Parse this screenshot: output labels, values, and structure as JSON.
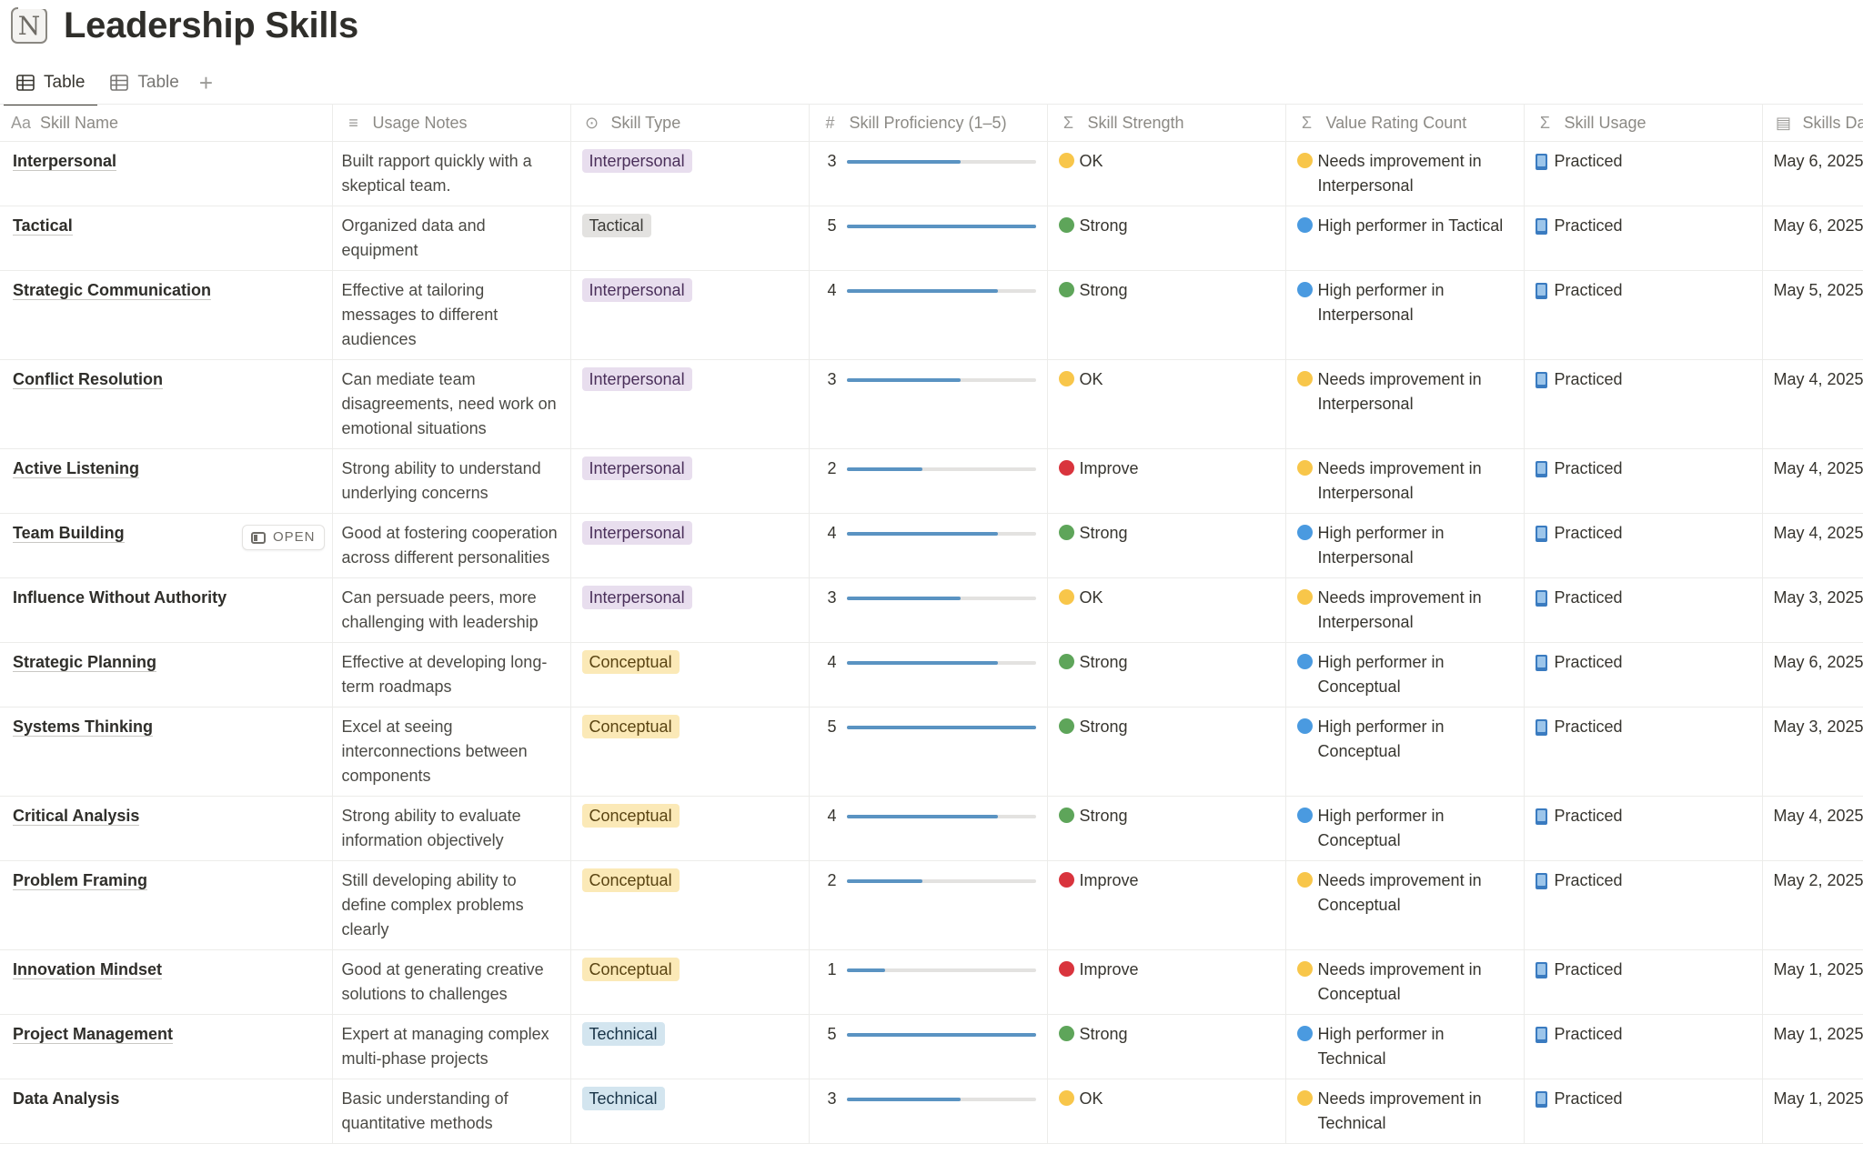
{
  "page": {
    "title": "Leadership Skills",
    "logo_letter": "N"
  },
  "tabs": [
    {
      "label": "Table",
      "icon": "table-icon",
      "active": true
    },
    {
      "label": "Table",
      "icon": "table-icon",
      "active": false
    }
  ],
  "add_tab_label": "+",
  "columns": [
    {
      "key": "name",
      "label": "Skill Name",
      "icon": "Aa"
    },
    {
      "key": "notes",
      "label": "Usage Notes",
      "icon": "≡"
    },
    {
      "key": "type",
      "label": "Skill Type",
      "icon": "⊙"
    },
    {
      "key": "proficiency",
      "label": "Skill Proficiency (1–5)",
      "icon": "#"
    },
    {
      "key": "strength",
      "label": "Skill Strength",
      "icon": "Σ"
    },
    {
      "key": "value",
      "label": "Value Rating Count",
      "icon": "Σ"
    },
    {
      "key": "usage",
      "label": "Skill Usage",
      "icon": "Σ"
    },
    {
      "key": "date",
      "label": "Skills Dat",
      "icon": "▤"
    }
  ],
  "open_button_label": "OPEN",
  "colors": {
    "ok": "#f8c64a",
    "strong": "#5ea55a",
    "improve": "#d9343d",
    "high": "#4a9ae0",
    "needs": "#f8c64a",
    "bar": "#5a93c2"
  },
  "rows": [
    {
      "name": "Interpersonal",
      "underline": true,
      "notes": "Built rapport quickly with a skeptical team.",
      "type": "Interpersonal",
      "type_class": "interpersonal",
      "proficiency": 3,
      "strength": "OK",
      "strength_color": "#f8c64a",
      "value": "Needs improvement in Interpersonal",
      "value_color": "#f8c64a",
      "usage": "Practiced",
      "date": "May 6, 2025"
    },
    {
      "name": "Tactical",
      "underline": true,
      "notes": "Organized data and equipment",
      "type": "Tactical",
      "type_class": "tactical",
      "proficiency": 5,
      "strength": "Strong",
      "strength_color": "#5ea55a",
      "value": "High performer in Tactical",
      "value_color": "#4a9ae0",
      "usage": "Practiced",
      "date": "May 6, 2025"
    },
    {
      "name": "Strategic Communication",
      "underline": true,
      "notes": "Effective at tailoring messages to different audiences",
      "type": "Interpersonal",
      "type_class": "interpersonal",
      "proficiency": 4,
      "strength": "Strong",
      "strength_color": "#5ea55a",
      "value": "High performer in Interpersonal",
      "value_color": "#4a9ae0",
      "usage": "Practiced",
      "date": "May 5, 2025"
    },
    {
      "name": "Conflict Resolution",
      "underline": true,
      "notes": "Can mediate team disagreements, need work on emotional situations",
      "type": "Interpersonal",
      "type_class": "interpersonal",
      "proficiency": 3,
      "strength": "OK",
      "strength_color": "#f8c64a",
      "value": "Needs improvement in Interpersonal",
      "value_color": "#f8c64a",
      "usage": "Practiced",
      "date": "May 4, 2025"
    },
    {
      "name": "Active Listening",
      "underline": true,
      "notes": "Strong ability to understand underlying concerns",
      "type": "Interpersonal",
      "type_class": "interpersonal",
      "proficiency": 2,
      "strength": "Improve",
      "strength_color": "#d9343d",
      "value": "Needs improvement in Interpersonal",
      "value_color": "#f8c64a",
      "usage": "Practiced",
      "date": "May 4, 2025"
    },
    {
      "name": "Team Building",
      "underline": true,
      "open": true,
      "notes": "Good at fostering cooperation across different personalities",
      "type": "Interpersonal",
      "type_class": "interpersonal",
      "proficiency": 4,
      "strength": "Strong",
      "strength_color": "#5ea55a",
      "value": "High performer in Interpersonal",
      "value_color": "#4a9ae0",
      "usage": "Practiced",
      "date": "May 4, 2025"
    },
    {
      "name": "Influence Without Authority",
      "underline": false,
      "notes": "Can persuade peers, more challenging with leadership",
      "type": "Interpersonal",
      "type_class": "interpersonal",
      "proficiency": 3,
      "strength": "OK",
      "strength_color": "#f8c64a",
      "value": "Needs improvement in Interpersonal",
      "value_color": "#f8c64a",
      "usage": "Practiced",
      "date": "May 3, 2025"
    },
    {
      "name": "Strategic Planning",
      "underline": true,
      "notes": "Effective at developing long-term roadmaps",
      "type": "Conceptual",
      "type_class": "conceptual",
      "proficiency": 4,
      "strength": "Strong",
      "strength_color": "#5ea55a",
      "value": "High performer in Conceptual",
      "value_color": "#4a9ae0",
      "usage": "Practiced",
      "date": "May 6, 2025"
    },
    {
      "name": "Systems Thinking",
      "underline": true,
      "notes": "Excel at seeing interconnections between components",
      "type": "Conceptual",
      "type_class": "conceptual",
      "proficiency": 5,
      "strength": "Strong",
      "strength_color": "#5ea55a",
      "value": "High performer in Conceptual",
      "value_color": "#4a9ae0",
      "usage": "Practiced",
      "date": "May 3, 2025"
    },
    {
      "name": "Critical Analysis",
      "underline": true,
      "notes": "Strong ability to evaluate information objectively",
      "type": "Conceptual",
      "type_class": "conceptual",
      "proficiency": 4,
      "strength": "Strong",
      "strength_color": "#5ea55a",
      "value": "High performer in Conceptual",
      "value_color": "#4a9ae0",
      "usage": "Practiced",
      "date": "May 4, 2025"
    },
    {
      "name": "Problem Framing",
      "underline": true,
      "notes": "Still developing ability to define complex problems clearly",
      "type": "Conceptual",
      "type_class": "conceptual",
      "proficiency": 2,
      "strength": "Improve",
      "strength_color": "#d9343d",
      "value": "Needs improvement in Conceptual",
      "value_color": "#f8c64a",
      "usage": "Practiced",
      "date": "May 2, 2025"
    },
    {
      "name": "Innovation Mindset",
      "underline": true,
      "notes": "Good at generating creative solutions to challenges",
      "type": "Conceptual",
      "type_class": "conceptual",
      "proficiency": 1,
      "strength": "Improve",
      "strength_color": "#d9343d",
      "value": "Needs improvement in Conceptual",
      "value_color": "#f8c64a",
      "usage": "Practiced",
      "date": "May 1, 2025"
    },
    {
      "name": "Project Management",
      "underline": true,
      "notes": "Expert at managing complex multi-phase projects",
      "type": "Technical",
      "type_class": "technical",
      "proficiency": 5,
      "strength": "Strong",
      "strength_color": "#5ea55a",
      "value": "High performer in Technical",
      "value_color": "#4a9ae0",
      "usage": "Practiced",
      "date": "May 1, 2025"
    },
    {
      "name": "Data Analysis",
      "underline": false,
      "notes": "Basic understanding of quantitative methods",
      "type": "Technical",
      "type_class": "technical",
      "proficiency": 3,
      "strength": "OK",
      "strength_color": "#f8c64a",
      "value": "Needs improvement in Technical",
      "value_color": "#f8c64a",
      "usage": "Practiced",
      "date": "May 1, 2025"
    }
  ]
}
